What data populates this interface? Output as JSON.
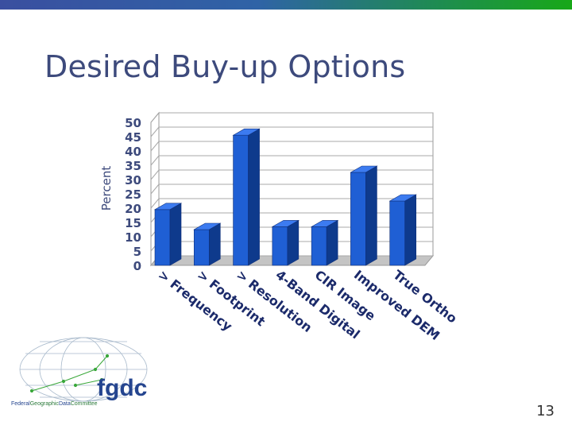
{
  "slide": {
    "title": "Desired Buy-up Options",
    "page_number": "13",
    "accent_colors": {
      "bar_left": "#3a4fa0",
      "bar_right": "#18a818",
      "title": "#3d4a7c"
    }
  },
  "logo": {
    "wordmark": "fgdc",
    "caption_parts": [
      "Federal",
      "Geographic",
      "Data",
      "Committee"
    ]
  },
  "chart_data": {
    "type": "bar",
    "title": "",
    "xlabel": "",
    "ylabel": "Percent",
    "ylim": [
      0,
      50
    ],
    "yticks": [
      "0",
      "5",
      "10",
      "15",
      "20",
      "25",
      "30",
      "35",
      "40",
      "45",
      "50"
    ],
    "categories": [
      "> Frequency",
      "> Footprint",
      "> Resolution",
      "4-Band Digital",
      "CIR Image",
      "Improved DEM",
      "True Ortho"
    ],
    "values": [
      19.5,
      12.5,
      45.5,
      13.5,
      13.5,
      32.5,
      22.5
    ],
    "bar_color": "#1f5fd4",
    "grid": true,
    "style": "3d"
  }
}
